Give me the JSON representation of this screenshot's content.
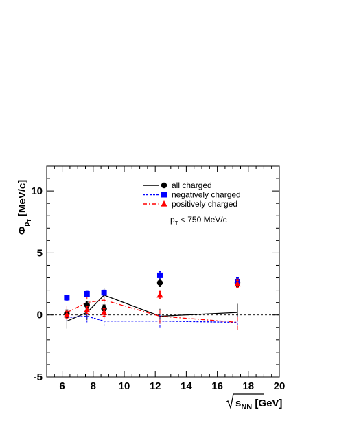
{
  "chart_data": {
    "type": "scatter",
    "xlabel": {
      "root": "s",
      "sub": "NN",
      "unit": "[GeV]"
    },
    "ylabel": {
      "sym": "Φ",
      "sub": "p",
      "subsub": "T",
      "unit": "[MeV/c]"
    },
    "xlim": [
      5,
      20
    ],
    "ylim": [
      -5,
      12
    ],
    "x_ticks": [
      6,
      8,
      10,
      12,
      14,
      16,
      18,
      20
    ],
    "y_ticks": [
      -5,
      0,
      5,
      10
    ],
    "x_tick_labels": [
      "6",
      "8",
      "10",
      "12",
      "14",
      "16",
      "18",
      "20"
    ],
    "y_tick_labels": [
      "-5",
      "0",
      "5",
      "10"
    ],
    "reference_line": 0,
    "grid": false,
    "legend_position": "top-right",
    "annotation": {
      "base": "p",
      "sub": "T",
      "rest": " < 750 MeV/c"
    },
    "series": [
      {
        "name": "all charged",
        "color": "#000000",
        "marker": "circle",
        "line_style": "solid",
        "points": [
          {
            "x": 6.3,
            "y": 0.1,
            "err": 0.3
          },
          {
            "x": 7.6,
            "y": 0.8,
            "err": 0.3
          },
          {
            "x": 8.7,
            "y": 0.5,
            "err": 0.3
          },
          {
            "x": 12.3,
            "y": 2.6,
            "err": 0.3
          },
          {
            "x": 17.3,
            "y": 2.6,
            "err": 0.3
          }
        ],
        "curve": [
          {
            "x": 6.3,
            "y": -0.5,
            "err": 0.6
          },
          {
            "x": 7.6,
            "y": 0.2,
            "err": 0.6
          },
          {
            "x": 8.7,
            "y": 1.6,
            "err": 0.6
          },
          {
            "x": 12.3,
            "y": -0.1,
            "err": 0.6
          },
          {
            "x": 17.3,
            "y": 0.2,
            "err": 0.7
          }
        ]
      },
      {
        "name": "negatively charged",
        "color": "#0000ff",
        "marker": "square",
        "line_style": "dashed",
        "points": [
          {
            "x": 6.3,
            "y": 1.4,
            "err": 0.2
          },
          {
            "x": 7.6,
            "y": 1.7,
            "err": 0.2
          },
          {
            "x": 8.7,
            "y": 1.8,
            "err": 0.2
          },
          {
            "x": 12.3,
            "y": 3.2,
            "err": 0.3
          },
          {
            "x": 17.3,
            "y": 2.7,
            "err": 0.3
          }
        ],
        "curve": [
          {
            "x": 6.3,
            "y": -0.2,
            "err": 0.3
          },
          {
            "x": 7.6,
            "y": -0.1,
            "err": 0.5
          },
          {
            "x": 8.7,
            "y": -0.5,
            "err": 0.4
          },
          {
            "x": 12.3,
            "y": -0.5,
            "err": 0.5
          },
          {
            "x": 17.3,
            "y": -0.6,
            "err": 0.5
          }
        ]
      },
      {
        "name": "positively charged",
        "color": "#ff0000",
        "marker": "triangle",
        "line_style": "dashdot",
        "points": [
          {
            "x": 6.3,
            "y": 0.0,
            "err": 0.3
          },
          {
            "x": 7.6,
            "y": 0.4,
            "err": 0.3
          },
          {
            "x": 8.7,
            "y": 0.2,
            "err": 0.3
          },
          {
            "x": 12.3,
            "y": 1.6,
            "err": 0.3
          },
          {
            "x": 17.3,
            "y": 2.5,
            "err": 0.3
          }
        ],
        "curve": [
          {
            "x": 6.3,
            "y": 0.2,
            "err": 0.5
          },
          {
            "x": 7.6,
            "y": 1.0,
            "err": 0.5
          },
          {
            "x": 8.7,
            "y": 1.2,
            "err": 0.6
          },
          {
            "x": 12.3,
            "y": -0.1,
            "err": 0.6
          },
          {
            "x": 17.3,
            "y": -0.6,
            "err": 0.6
          }
        ]
      }
    ]
  }
}
